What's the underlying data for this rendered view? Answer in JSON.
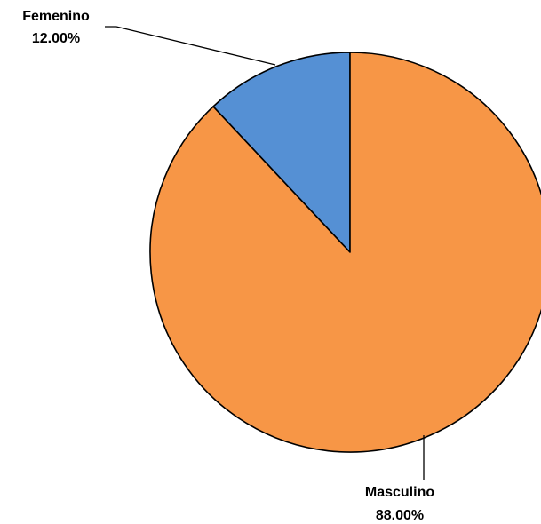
{
  "chart_data": {
    "type": "pie",
    "title": "",
    "slices": [
      {
        "label": "Femenino",
        "value": 12.0,
        "value_label": "12.00%",
        "color": "#5590D4"
      },
      {
        "label": "Masculino",
        "value": 88.0,
        "value_label": "88.00%",
        "color": "#F79646"
      }
    ],
    "start_angle_deg": 0,
    "direction": "counterclockwise",
    "slice_border_color": "#000000",
    "leader_lines": true,
    "legend": "none"
  }
}
